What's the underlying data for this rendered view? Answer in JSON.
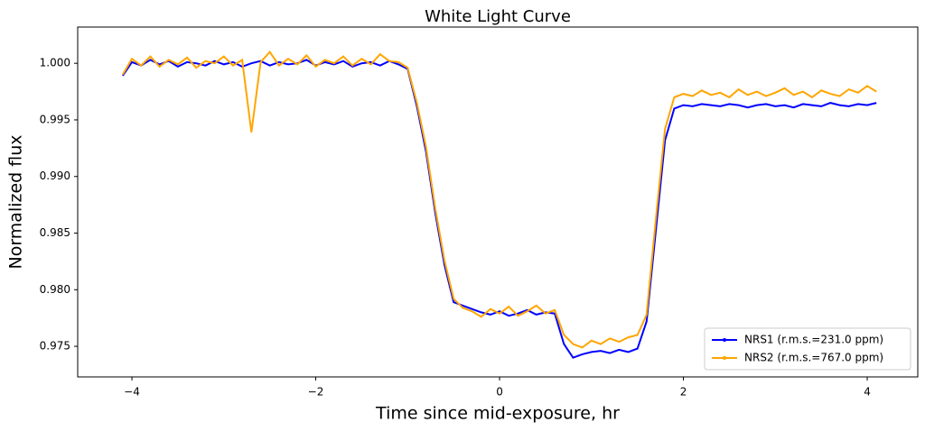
{
  "chart_data": {
    "type": "line",
    "title": "White Light Curve",
    "x_label": "Time since mid-exposure, hr",
    "y_label": "Normalized flux",
    "x": [
      -4.1,
      -4.0,
      -3.9,
      -3.8,
      -3.7,
      -3.6,
      -3.5,
      -3.4,
      -3.3,
      -3.2,
      -3.1,
      -3.0,
      -2.9,
      -2.8,
      -2.7,
      -2.6,
      -2.5,
      -2.4,
      -2.3,
      -2.2,
      -2.1,
      -2.0,
      -1.9,
      -1.8,
      -1.7,
      -1.6,
      -1.5,
      -1.4,
      -1.3,
      -1.2,
      -1.1,
      -1.0,
      -0.9,
      -0.8,
      -0.7,
      -0.6,
      -0.5,
      -0.4,
      -0.3,
      -0.2,
      -0.1,
      0.0,
      0.1,
      0.2,
      0.3,
      0.4,
      0.5,
      0.6,
      0.7,
      0.8,
      0.9,
      1.0,
      1.1,
      1.2,
      1.3,
      1.4,
      1.5,
      1.6,
      1.7,
      1.8,
      1.9,
      2.0,
      2.1,
      2.2,
      2.3,
      2.4,
      2.5,
      2.6,
      2.7,
      2.8,
      2.9,
      3.0,
      3.1,
      3.2,
      3.3,
      3.4,
      3.5,
      3.6,
      3.7,
      3.8,
      3.9,
      4.0,
      4.1
    ],
    "series": [
      {
        "name": "NRS1 (r.m.s.=231.0 ppm)",
        "color": "#0000ff",
        "values": [
          0.9989,
          1.0001,
          0.9998,
          1.0003,
          0.9999,
          1.0002,
          0.9997,
          1.0001,
          1.0,
          0.9998,
          1.0002,
          0.9999,
          1.0001,
          0.9997,
          1.0,
          1.0002,
          0.9998,
          1.0001,
          0.9999,
          1.0,
          1.0003,
          0.9998,
          1.0001,
          0.9999,
          1.0002,
          0.9997,
          1.0,
          1.0001,
          0.9998,
          1.0002,
          0.9999,
          0.9995,
          0.9962,
          0.9922,
          0.9868,
          0.9822,
          0.9789,
          0.9786,
          0.9783,
          0.978,
          0.9778,
          0.9781,
          0.9777,
          0.9779,
          0.9782,
          0.9778,
          0.978,
          0.9779,
          0.9752,
          0.974,
          0.9743,
          0.9745,
          0.9746,
          0.9744,
          0.9747,
          0.9745,
          0.9748,
          0.9772,
          0.9852,
          0.9932,
          0.996,
          0.9963,
          0.9962,
          0.9964,
          0.9963,
          0.9962,
          0.9964,
          0.9963,
          0.9961,
          0.9963,
          0.9964,
          0.9962,
          0.9963,
          0.9961,
          0.9964,
          0.9963,
          0.9962,
          0.9965,
          0.9963,
          0.9962,
          0.9964,
          0.9963,
          0.9965
        ]
      },
      {
        "name": "NRS2 (r.m.s.=767.0 ppm)",
        "color": "#ffa500",
        "values": [
          0.999,
          1.0004,
          0.9998,
          1.0006,
          0.9997,
          1.0003,
          0.9999,
          1.0005,
          0.9996,
          1.0002,
          1.0,
          1.0006,
          0.9998,
          1.0003,
          0.9939,
          1.0001,
          1.001,
          0.9998,
          1.0004,
          0.9999,
          1.0007,
          0.9997,
          1.0003,
          1.0,
          1.0006,
          0.9998,
          1.0004,
          0.9999,
          1.0008,
          1.0002,
          1.0001,
          0.9996,
          0.9965,
          0.9926,
          0.9872,
          0.9826,
          0.9792,
          0.9784,
          0.9781,
          0.9776,
          0.9783,
          0.9779,
          0.9785,
          0.9777,
          0.9781,
          0.9786,
          0.9779,
          0.9782,
          0.976,
          0.9752,
          0.9749,
          0.9755,
          0.9752,
          0.9757,
          0.9754,
          0.9758,
          0.976,
          0.9778,
          0.9862,
          0.9942,
          0.997,
          0.9973,
          0.9971,
          0.9976,
          0.9972,
          0.9974,
          0.997,
          0.9977,
          0.9972,
          0.9975,
          0.9971,
          0.9974,
          0.9978,
          0.9972,
          0.9975,
          0.997,
          0.9976,
          0.9973,
          0.9971,
          0.9977,
          0.9974,
          0.998,
          0.9975
        ]
      }
    ],
    "xlim": [
      -4.59,
      4.55
    ],
    "ylim": [
      0.9723,
      1.0032
    ],
    "xticks": [
      {
        "value": -4,
        "label": "−4"
      },
      {
        "value": -2,
        "label": "−2"
      },
      0,
      2,
      4
    ],
    "yticks": [
      0.975,
      {
        "value": 0.98,
        "label": "0.980"
      },
      0.985,
      {
        "value": 0.99,
        "label": "0.990"
      },
      0.995,
      {
        "value": 1,
        "label": "1.000"
      }
    ],
    "legend": "lower right"
  }
}
